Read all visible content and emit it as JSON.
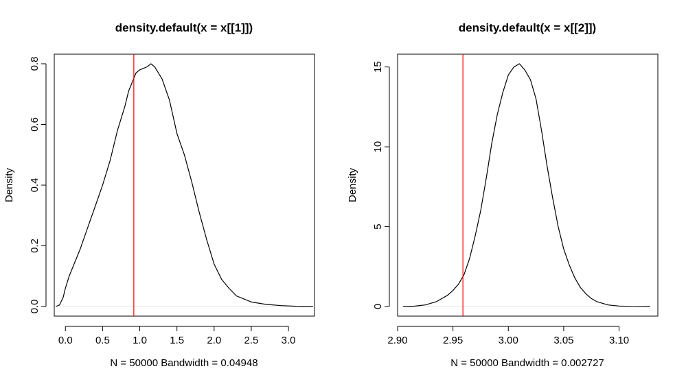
{
  "chart_data": [
    {
      "type": "line",
      "title": "density.default(x = x[[1]])",
      "xlabel": "N = 50000   Bandwidth = 0.04948",
      "ylabel": "Density",
      "xlim": [
        -0.15,
        3.35
      ],
      "ylim": [
        0,
        0.8
      ],
      "x_ticks": [
        "0.0",
        "0.5",
        "1.0",
        "1.5",
        "2.0",
        "2.5",
        "3.0"
      ],
      "y_ticks": [
        "0.0",
        "0.2",
        "0.4",
        "0.6",
        "0.8"
      ],
      "grid": false,
      "vline": {
        "x": 0.92,
        "color": "#ff0000"
      },
      "curve_color": "#000000",
      "series": [
        {
          "x": [
            -0.13,
            -0.08,
            -0.03,
            0.0,
            0.05,
            0.1,
            0.2,
            0.3,
            0.4,
            0.5,
            0.6,
            0.7,
            0.8,
            0.85,
            0.9,
            0.95,
            1.0,
            1.1,
            1.15,
            1.2,
            1.3,
            1.4,
            1.5,
            1.6,
            1.7,
            1.8,
            1.9,
            2.0,
            2.1,
            2.2,
            2.3,
            2.5,
            2.7,
            2.9,
            3.1,
            3.33
          ],
          "y": [
            0.0,
            0.005,
            0.03,
            0.06,
            0.1,
            0.13,
            0.19,
            0.26,
            0.33,
            0.4,
            0.48,
            0.58,
            0.66,
            0.71,
            0.74,
            0.77,
            0.78,
            0.79,
            0.8,
            0.79,
            0.75,
            0.68,
            0.57,
            0.5,
            0.41,
            0.31,
            0.22,
            0.14,
            0.09,
            0.06,
            0.035,
            0.015,
            0.007,
            0.003,
            0.001,
            0.0
          ]
        }
      ]
    },
    {
      "type": "line",
      "title": "density.default(x = x[[2]])",
      "xlabel": "N = 50000   Bandwidth = 0.002727",
      "ylabel": "Density",
      "xlim": [
        2.9,
        3.135
      ],
      "ylim": [
        0,
        15.2
      ],
      "x_ticks": [
        "2.90",
        "2.95",
        "3.00",
        "3.05",
        "3.10"
      ],
      "y_ticks": [
        "0",
        "5",
        "10",
        "15"
      ],
      "grid": false,
      "vline": {
        "x": 2.959,
        "color": "#ff0000"
      },
      "curve_color": "#000000",
      "series": [
        {
          "x": [
            2.905,
            2.915,
            2.925,
            2.935,
            2.945,
            2.95,
            2.955,
            2.96,
            2.965,
            2.97,
            2.975,
            2.98,
            2.985,
            2.99,
            2.995,
            3.0,
            3.005,
            3.01,
            3.015,
            3.02,
            3.025,
            3.03,
            3.035,
            3.04,
            3.045,
            3.05,
            3.055,
            3.06,
            3.065,
            3.07,
            3.075,
            3.08,
            3.09,
            3.1,
            3.11,
            3.128
          ],
          "y": [
            0.0,
            0.02,
            0.1,
            0.3,
            0.7,
            1.0,
            1.4,
            2.0,
            3.0,
            4.4,
            6.0,
            8.0,
            10.2,
            12.0,
            13.4,
            14.5,
            15.0,
            15.2,
            14.8,
            14.2,
            13.0,
            11.0,
            8.8,
            6.8,
            5.0,
            3.6,
            2.6,
            1.8,
            1.2,
            0.8,
            0.5,
            0.3,
            0.1,
            0.03,
            0.01,
            0.0
          ]
        }
      ]
    }
  ]
}
